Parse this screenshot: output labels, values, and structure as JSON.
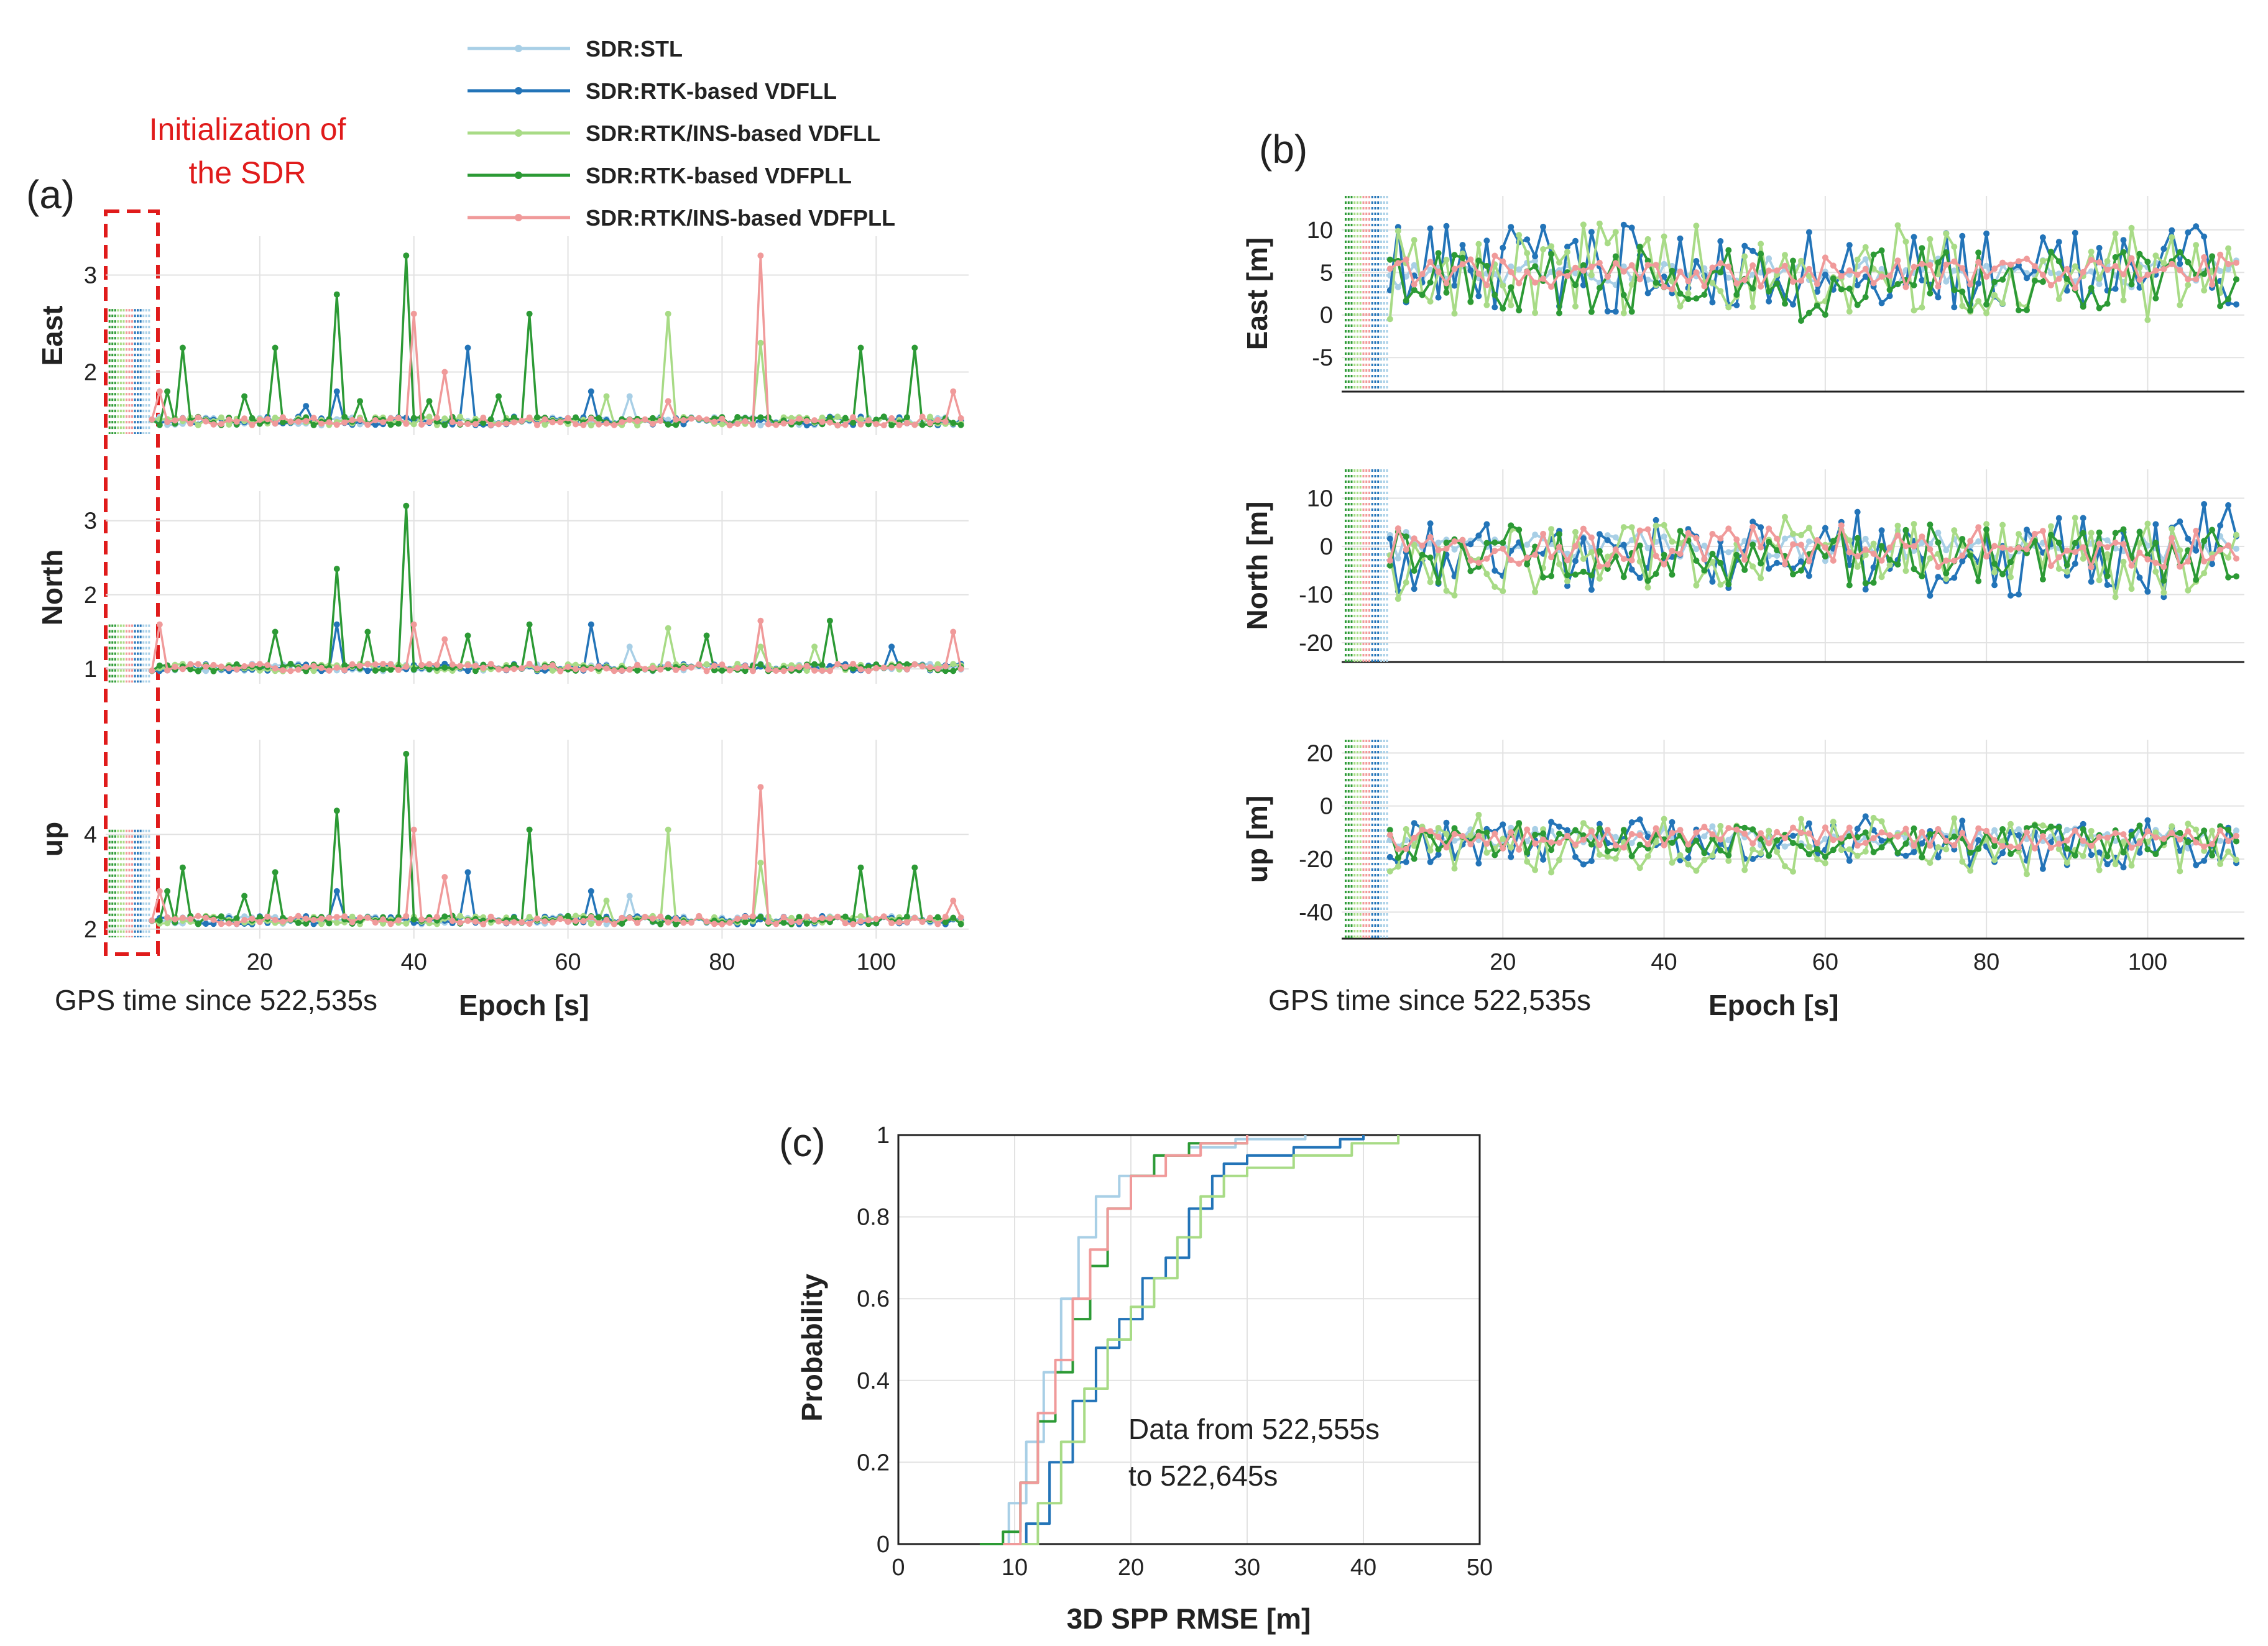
{
  "legend": [
    {
      "name": "SDR:STL",
      "color": "#a8cfe6"
    },
    {
      "name": "SDR:RTK-based VDFLL",
      "color": "#2374b8"
    },
    {
      "name": "SDR:RTK/INS-based VDFLL",
      "color": "#a8db86"
    },
    {
      "name": "SDR:RTK-based VDFPLL",
      "color": "#2c9a35"
    },
    {
      "name": "SDR:RTK/INS-based VDFPLL",
      "color": "#f09a9a"
    }
  ],
  "annotations": {
    "init_label_1": "Initialization of",
    "init_label_2": "the SDR",
    "gps_time_a": "GPS time since 522,535s",
    "gps_time_b": "GPS time since 522,535s",
    "data_range_1": "Data from 522,555s",
    "data_range_2": "to 522,645s"
  },
  "chart_data": [
    {
      "id": "a",
      "panel_label": "(a)",
      "type": "line",
      "xlabel": "Epoch [s]",
      "xlim": [
        0,
        112
      ],
      "xticks": [
        20,
        40,
        60,
        80,
        100
      ],
      "series_order": [
        "SDR:STL",
        "SDR:RTK-based VDFLL",
        "SDR:RTK/INS-based VDFLL",
        "SDR:RTK-based VDFPLL",
        "SDR:RTK/INS-based VDFPLL"
      ],
      "subplots": [
        {
          "ylabel": "East",
          "ylim": [
            1.35,
            3.4
          ],
          "yticks": [
            2,
            3
          ],
          "base": 1.45,
          "noise": 0.09,
          "init_value": 2.65,
          "spikes": {
            "SDR:RTK-based VDFPLL": [
              [
                10,
                2.25
              ],
              [
                22,
                2.25
              ],
              [
                30,
                2.8
              ],
              [
                39,
                3.2
              ],
              [
                55,
                2.6
              ],
              [
                98,
                2.25
              ],
              [
                105,
                2.25
              ],
              [
                8,
                1.8
              ],
              [
                18,
                1.75
              ],
              [
                33,
                1.7
              ],
              [
                42,
                1.7
              ],
              [
                51,
                1.75
              ]
            ],
            "SDR:RTK-based VDFLL": [
              [
                47,
                2.25
              ],
              [
                30,
                1.8
              ],
              [
                63,
                1.8
              ],
              [
                26,
                1.65
              ]
            ],
            "SDR:RTK/INS-based VDFLL": [
              [
                73,
                2.6
              ],
              [
                85,
                2.3
              ],
              [
                65,
                1.75
              ]
            ],
            "SDR:RTK/INS-based VDFPLL": [
              [
                40,
                2.6
              ],
              [
                85,
                3.2
              ],
              [
                7,
                1.8
              ],
              [
                110,
                1.8
              ],
              [
                44,
                2.0
              ],
              [
                73,
                1.7
              ]
            ],
            "SDR:STL": [
              [
                68,
                1.75
              ]
            ]
          }
        },
        {
          "ylabel": "North",
          "ylim": [
            0.8,
            3.4
          ],
          "yticks": [
            1,
            2,
            3
          ],
          "base": 0.97,
          "noise": 0.1,
          "init_value": 1.6,
          "spikes": {
            "SDR:RTK-based VDFPLL": [
              [
                30,
                2.35
              ],
              [
                39,
                3.2
              ],
              [
                22,
                1.5
              ],
              [
                55,
                1.6
              ],
              [
                78,
                1.45
              ],
              [
                94,
                1.65
              ],
              [
                34,
                1.5
              ],
              [
                47,
                1.45
              ]
            ],
            "SDR:RTK-based VDFLL": [
              [
                30,
                1.6
              ],
              [
                63,
                1.6
              ],
              [
                102,
                1.3
              ]
            ],
            "SDR:RTK/INS-based VDFLL": [
              [
                73,
                1.55
              ],
              [
                85,
                1.3
              ],
              [
                92,
                1.3
              ]
            ],
            "SDR:RTK/INS-based VDFPLL": [
              [
                7,
                1.6
              ],
              [
                40,
                1.6
              ],
              [
                85,
                1.65
              ],
              [
                110,
                1.5
              ],
              [
                44,
                1.4
              ]
            ],
            "SDR:STL": [
              [
                68,
                1.3
              ]
            ]
          }
        },
        {
          "ylabel": "up",
          "ylim": [
            1.8,
            6.0
          ],
          "yticks": [
            2,
            4
          ],
          "base": 2.1,
          "noise": 0.18,
          "init_value": 4.1,
          "spikes": {
            "SDR:RTK-based VDFPLL": [
              [
                10,
                3.3
              ],
              [
                22,
                3.2
              ],
              [
                30,
                4.5
              ],
              [
                39,
                5.7
              ],
              [
                55,
                4.1
              ],
              [
                98,
                3.3
              ],
              [
                105,
                3.3
              ],
              [
                8,
                2.8
              ],
              [
                18,
                2.7
              ]
            ],
            "SDR:RTK-based VDFLL": [
              [
                30,
                2.8
              ],
              [
                47,
                3.2
              ],
              [
                63,
                2.8
              ]
            ],
            "SDR:RTK/INS-based VDFLL": [
              [
                73,
                4.1
              ],
              [
                85,
                3.4
              ],
              [
                65,
                2.6
              ]
            ],
            "SDR:RTK/INS-based VDFPLL": [
              [
                40,
                4.1
              ],
              [
                85,
                5.0
              ],
              [
                7,
                2.8
              ],
              [
                110,
                2.6
              ],
              [
                44,
                3.1
              ]
            ],
            "SDR:STL": [
              [
                68,
                2.7
              ]
            ]
          }
        }
      ]
    },
    {
      "id": "b",
      "panel_label": "(b)",
      "type": "line",
      "xlabel": "Epoch [s]",
      "xlim": [
        0,
        112
      ],
      "xticks": [
        20,
        40,
        60,
        80,
        100
      ],
      "series_order": [
        "SDR:STL",
        "SDR:RTK-based VDFLL",
        "SDR:RTK/INS-based VDFLL",
        "SDR:RTK-based VDFPLL",
        "SDR:RTK/INS-based VDFPLL"
      ],
      "subplots": [
        {
          "ylabel": "East [m]",
          "ylim": [
            -9,
            14
          ],
          "yticks": [
            -5,
            0,
            5,
            10
          ],
          "series": {
            "SDR:STL": {
              "mean": 5,
              "amp": 1.5
            },
            "SDR:RTK-based VDFLL": {
              "mean": 6,
              "amp": 5.0
            },
            "SDR:RTK/INS-based VDFLL": {
              "mean": 5,
              "amp": 5.5
            },
            "SDR:RTK-based VDFPLL": {
              "mean": 4,
              "amp": 4.0
            },
            "SDR:RTK/INS-based VDFPLL": {
              "mean": 5,
              "amp": 1.8
            }
          }
        },
        {
          "ylabel": "North [m]",
          "ylim": [
            -24,
            16
          ],
          "yticks": [
            -20,
            -10,
            0,
            10
          ],
          "series": {
            "SDR:STL": {
              "mean": 0,
              "amp": 3.0
            },
            "SDR:RTK-based VDFLL": {
              "mean": -2,
              "amp": 9.0
            },
            "SDR:RTK/INS-based VDFLL": {
              "mean": -2,
              "amp": 8.0
            },
            "SDR:RTK-based VDFPLL": {
              "mean": -2,
              "amp": 5.5
            },
            "SDR:RTK/INS-based VDFPLL": {
              "mean": 0,
              "amp": 4.0
            }
          }
        },
        {
          "ylabel": "up [m]",
          "ylim": [
            -50,
            25
          ],
          "yticks": [
            -40,
            -20,
            0,
            20
          ],
          "series": {
            "SDR:STL": {
              "mean": -12,
              "amp": 4.0
            },
            "SDR:RTK-based VDFLL": {
              "mean": -14,
              "amp": 9.0
            },
            "SDR:RTK/INS-based VDFLL": {
              "mean": -15,
              "amp": 10.0
            },
            "SDR:RTK-based VDFPLL": {
              "mean": -13,
              "amp": 6.0
            },
            "SDR:RTK/INS-based VDFPLL": {
              "mean": -12,
              "amp": 4.0
            }
          }
        }
      ]
    },
    {
      "id": "c",
      "panel_label": "(c)",
      "type": "line",
      "title": "",
      "xlabel": "3D SPP RMSE [m]",
      "ylabel": "Probability",
      "xlim": [
        0,
        50
      ],
      "ylim": [
        0,
        1
      ],
      "xticks": [
        0,
        10,
        20,
        30,
        40,
        50
      ],
      "yticks": [
        0,
        0.2,
        0.4,
        0.6,
        0.8,
        1
      ],
      "series": [
        {
          "name": "SDR:STL",
          "x": [
            8,
            9.5,
            11,
            12.5,
            14,
            15.5,
            17,
            19,
            22,
            25,
            29,
            35
          ],
          "y": [
            0,
            0.1,
            0.25,
            0.42,
            0.6,
            0.75,
            0.85,
            0.9,
            0.95,
            0.97,
            0.99,
            1
          ]
        },
        {
          "name": "SDR:RTK-based VDFLL",
          "x": [
            9.5,
            11,
            13,
            15,
            17,
            19,
            21,
            23,
            25,
            27,
            28,
            30,
            34,
            38,
            40
          ],
          "y": [
            0,
            0.05,
            0.2,
            0.35,
            0.48,
            0.55,
            0.65,
            0.7,
            0.82,
            0.9,
            0.93,
            0.95,
            0.97,
            0.99,
            1
          ]
        },
        {
          "name": "SDR:RTK/INS-based VDFLL",
          "x": [
            10,
            12,
            14,
            16,
            18,
            20,
            22,
            24,
            26,
            28,
            30,
            34,
            39,
            43
          ],
          "y": [
            0,
            0.1,
            0.25,
            0.38,
            0.5,
            0.58,
            0.65,
            0.75,
            0.85,
            0.9,
            0.92,
            0.95,
            0.98,
            1
          ]
        },
        {
          "name": "SDR:RTK-based VDFPLL",
          "x": [
            7,
            9,
            10.5,
            12,
            13.5,
            15,
            16.5,
            18,
            20,
            22,
            25,
            30
          ],
          "y": [
            0,
            0.03,
            0.15,
            0.3,
            0.42,
            0.55,
            0.68,
            0.82,
            0.9,
            0.95,
            0.98,
            1
          ]
        },
        {
          "name": "SDR:RTK/INS-based VDFPLL",
          "x": [
            9,
            10.5,
            12,
            13.5,
            15,
            16.5,
            18,
            20,
            23,
            26,
            30
          ],
          "y": [
            0,
            0.15,
            0.32,
            0.45,
            0.6,
            0.72,
            0.82,
            0.9,
            0.95,
            0.98,
            1
          ]
        }
      ]
    }
  ]
}
